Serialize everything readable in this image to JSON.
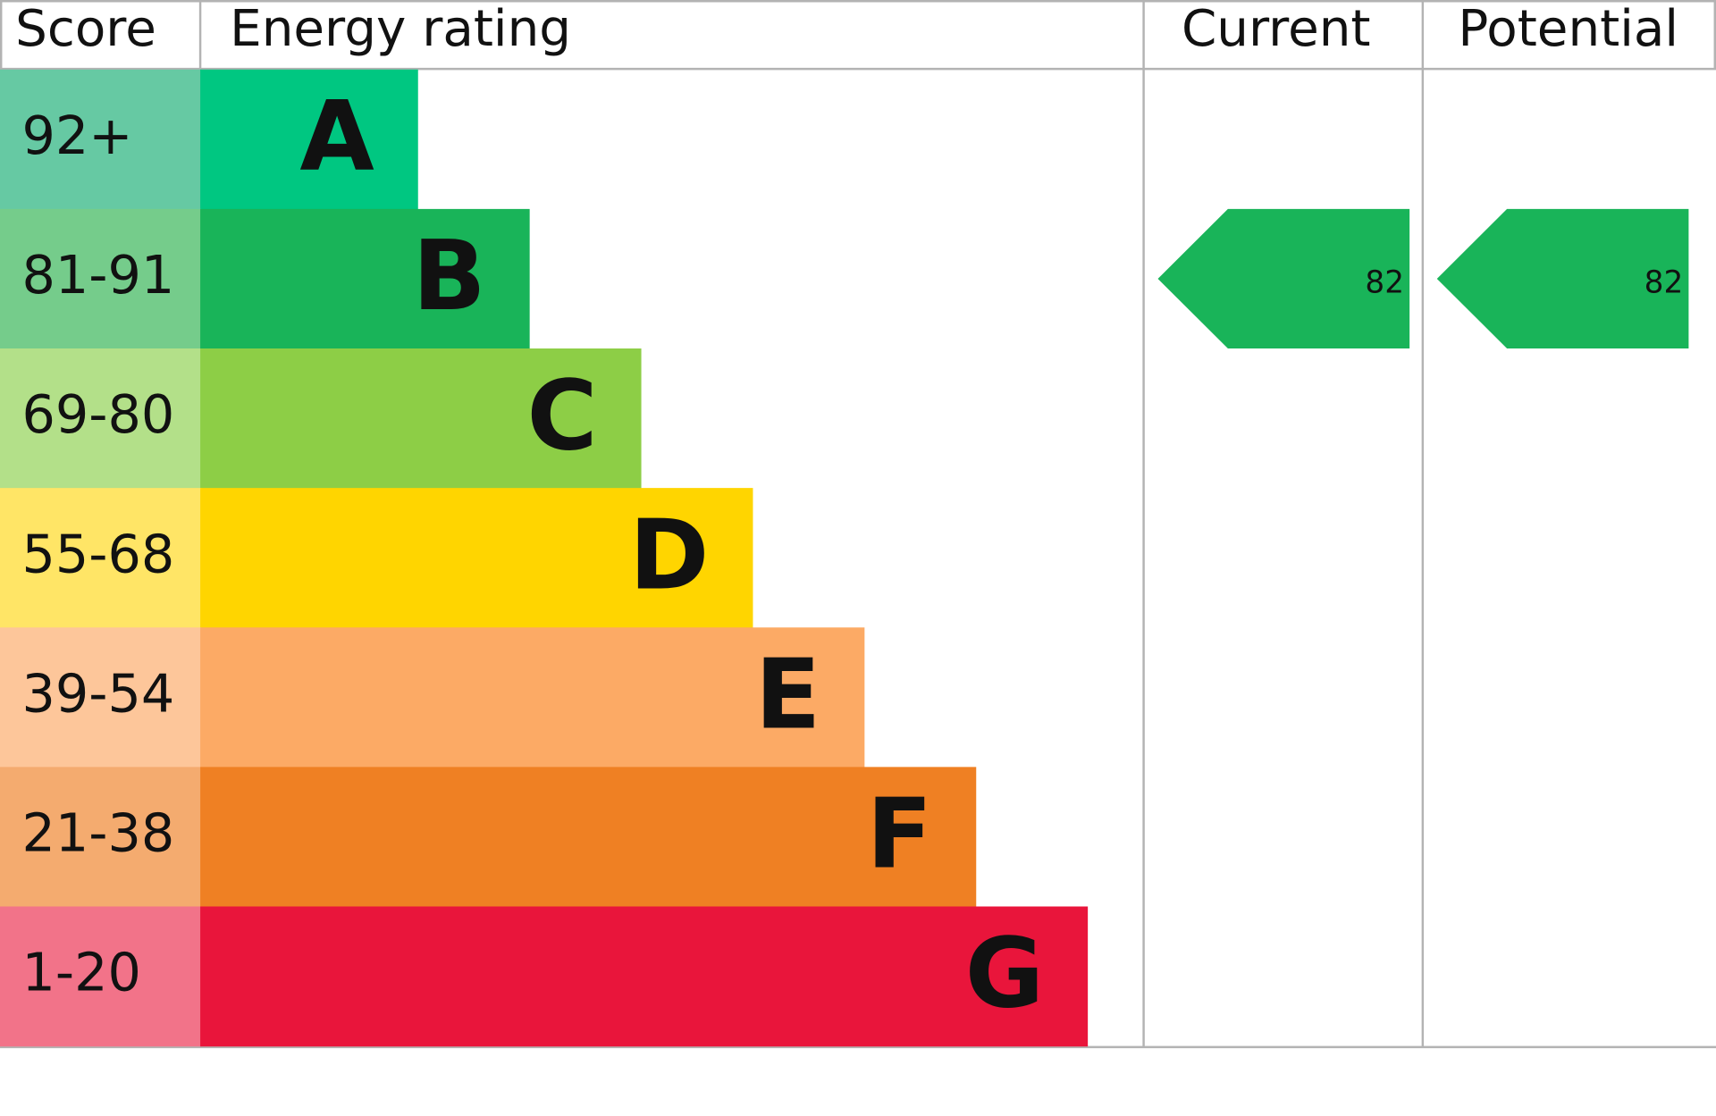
{
  "header": {
    "score": "Score",
    "rating": "Energy rating",
    "current": "Current",
    "potential": "Potential"
  },
  "bands": [
    {
      "score": "92+",
      "letter": "A",
      "color": "#00c781",
      "score_color": "#66c9a3"
    },
    {
      "score": "81-91",
      "letter": "B",
      "color": "#19b459",
      "score_color": "#75cc8b"
    },
    {
      "score": "69-80",
      "letter": "C",
      "color": "#8dce46",
      "score_color": "#b3e089"
    },
    {
      "score": "55-68",
      "letter": "D",
      "color": "#ffd500",
      "score_color": "#ffe566"
    },
    {
      "score": "39-54",
      "letter": "E",
      "color": "#fcaa65",
      "score_color": "#fdc69a"
    },
    {
      "score": "21-38",
      "letter": "F",
      "color": "#ef8023",
      "score_color": "#f4ab6f"
    },
    {
      "score": "1-20",
      "letter": "G",
      "color": "#e9153b",
      "score_color": "#f27389"
    }
  ],
  "current": 82,
  "potential": 82
}
